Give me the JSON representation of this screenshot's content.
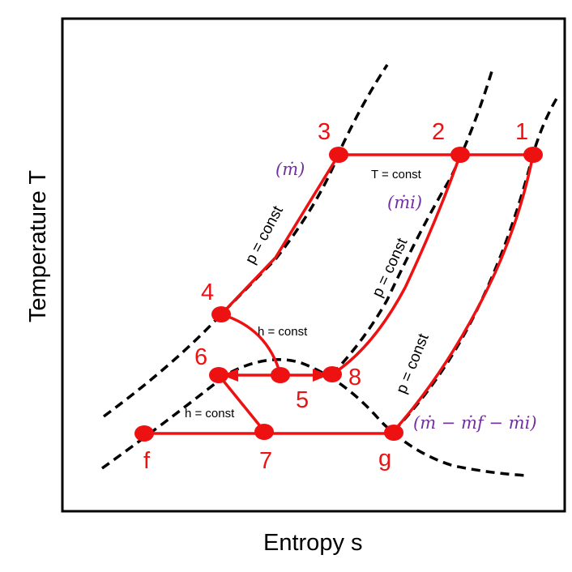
{
  "axes": {
    "x_label": "Entropy s",
    "y_label": "Temperature T"
  },
  "colors": {
    "process": "#ee1111",
    "curve": "#000000",
    "annotation": "#7030a0",
    "frame": "#000000"
  },
  "states": {
    "s1": "1",
    "s2": "2",
    "s3": "3",
    "s4": "4",
    "s5": "5",
    "s6": "6",
    "s7": "7",
    "s8": "8",
    "sf": "f",
    "sg": "g"
  },
  "annotations": {
    "p_const_1": "p = const",
    "p_const_2": "p = const",
    "p_const_3": "p = const",
    "t_const": "T = const",
    "h_const_1": "h = const",
    "h_const_2": "h = const"
  },
  "flow_labels": {
    "m": "(ṁ)",
    "m_i": "(ṁi)",
    "m_rest": "(ṁ − ṁf − ṁi)"
  }
}
